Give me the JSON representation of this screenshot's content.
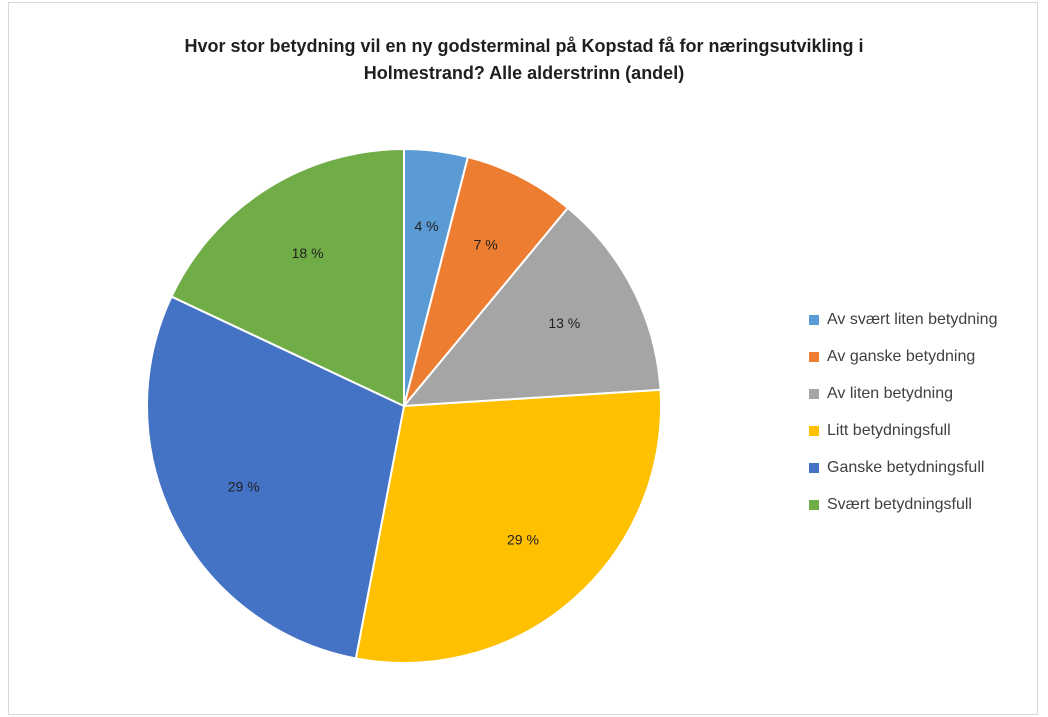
{
  "chart_data": {
    "type": "pie",
    "title_lines": [
      "Hvor stor betydning vil en ny godsterminal på Kopstad få for næringsutvikling i",
      "Holmestrand? Alle alderstrinn (andel)"
    ],
    "categories": [
      "Av svært liten betydning",
      "Av ganske betydning",
      "Av liten betydning",
      "Litt betydningsfull",
      "Ganske betydningsfull",
      "Svært betydningsfull"
    ],
    "values": [
      4,
      7,
      13,
      29,
      29,
      18
    ],
    "data_labels": [
      "4 %",
      "7 %",
      "13 %",
      "29 %",
      "29 %",
      "18 %"
    ],
    "colors": [
      "#5B9BD5",
      "#ED7D31",
      "#A5A5A5",
      "#FFC000",
      "#4472C4",
      "#70AD47"
    ],
    "legend_position": "right"
  }
}
